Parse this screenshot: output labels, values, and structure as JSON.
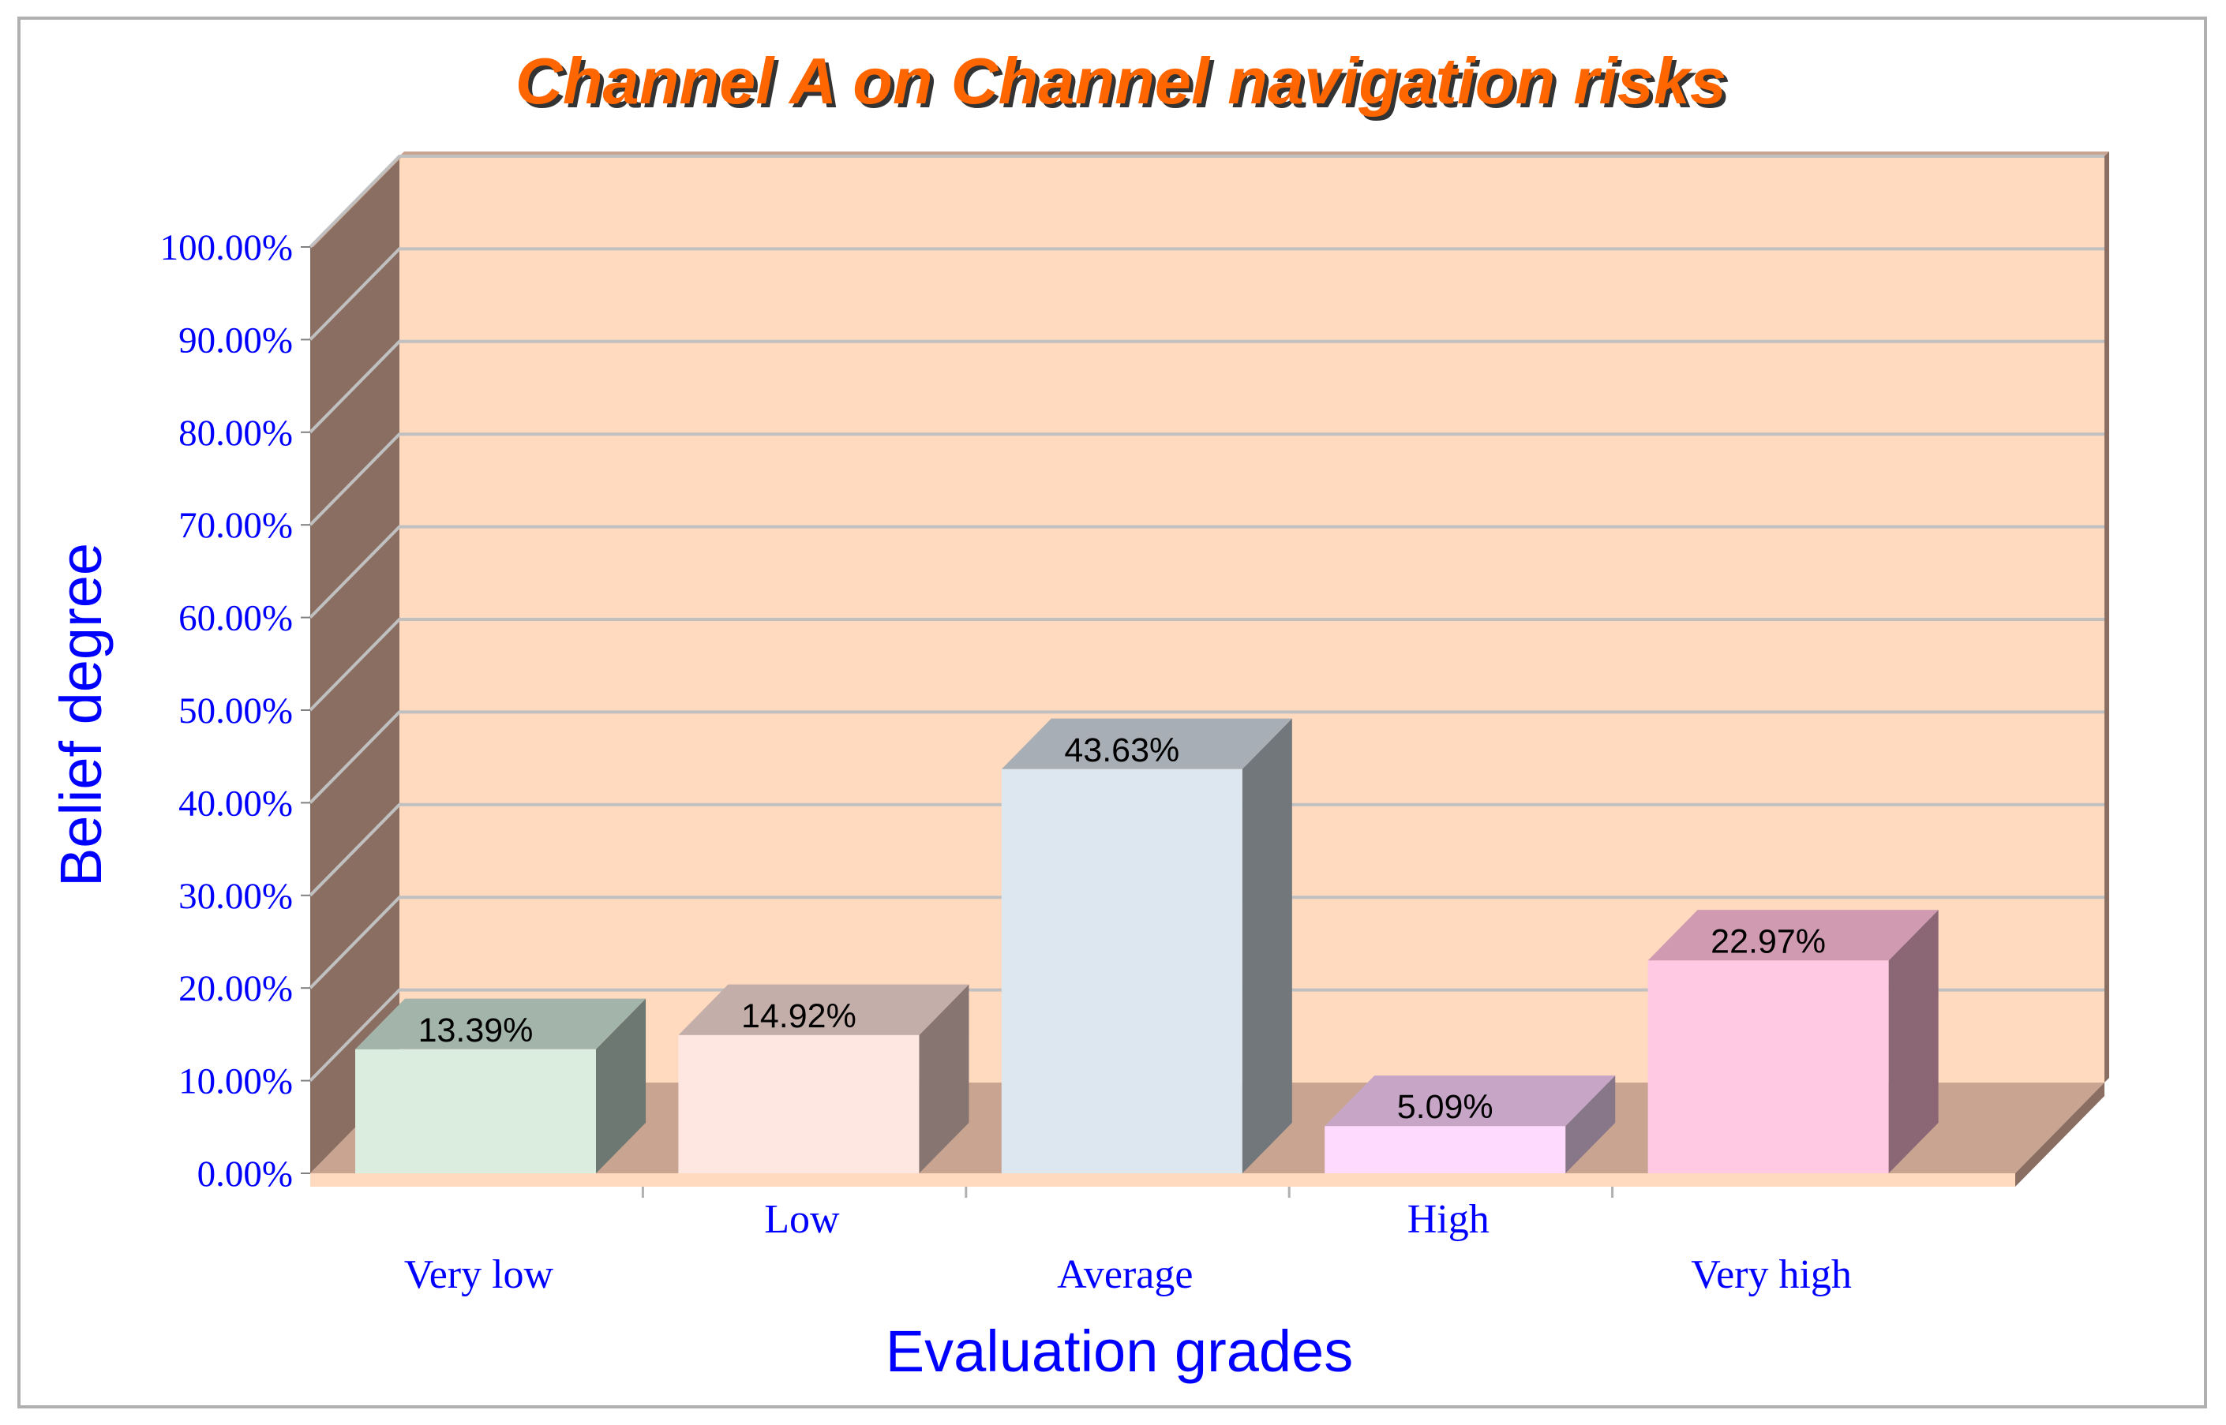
{
  "chart_data": {
    "type": "bar",
    "title": "Channel A on Channel navigation risks",
    "xlabel": "Evaluation grades",
    "ylabel": "Belief degree",
    "categories": [
      "Very low",
      "Low",
      "Average",
      "High",
      "Very high"
    ],
    "values": [
      13.39,
      14.92,
      43.63,
      5.09,
      22.97
    ],
    "data_labels": [
      "13.39%",
      "14.92%",
      "43.63%",
      "5.09%",
      "22.97%"
    ],
    "ylim": [
      0,
      100
    ],
    "yticks": [
      0,
      10,
      20,
      30,
      40,
      50,
      60,
      70,
      80,
      90,
      100
    ],
    "ytick_labels": [
      "0.00%",
      "10.00%",
      "20.00%",
      "30.00%",
      "40.00%",
      "50.00%",
      "60.00%",
      "70.00%",
      "80.00%",
      "90.00%",
      "100.00%"
    ],
    "grid": true,
    "legend": "none",
    "style": "3d-column"
  },
  "colors": {
    "title": "#ff6600",
    "title_shadow": "#333333",
    "axis_text": "#0000ff",
    "back_wall": "#ffdabf",
    "side_wall": "#8a6e62",
    "floor": "#c8a491",
    "floor_front": "#ffdabf",
    "gridline": "#c0c0c0",
    "frame": "#b0b0b0",
    "data_label": "#000000",
    "bar_front": [
      "#daeddf",
      "#ffe7e1",
      "#dce7ef",
      "#ffdaff",
      "#ffc9e4"
    ],
    "bar_top": [
      "#a3b4aa",
      "#c4aea9",
      "#a8aeb5",
      "#c6a5c6",
      "#d09bb0"
    ],
    "bar_side": [
      "#6c7871",
      "#877571",
      "#72777c",
      "#887689",
      "#8b6775"
    ]
  }
}
